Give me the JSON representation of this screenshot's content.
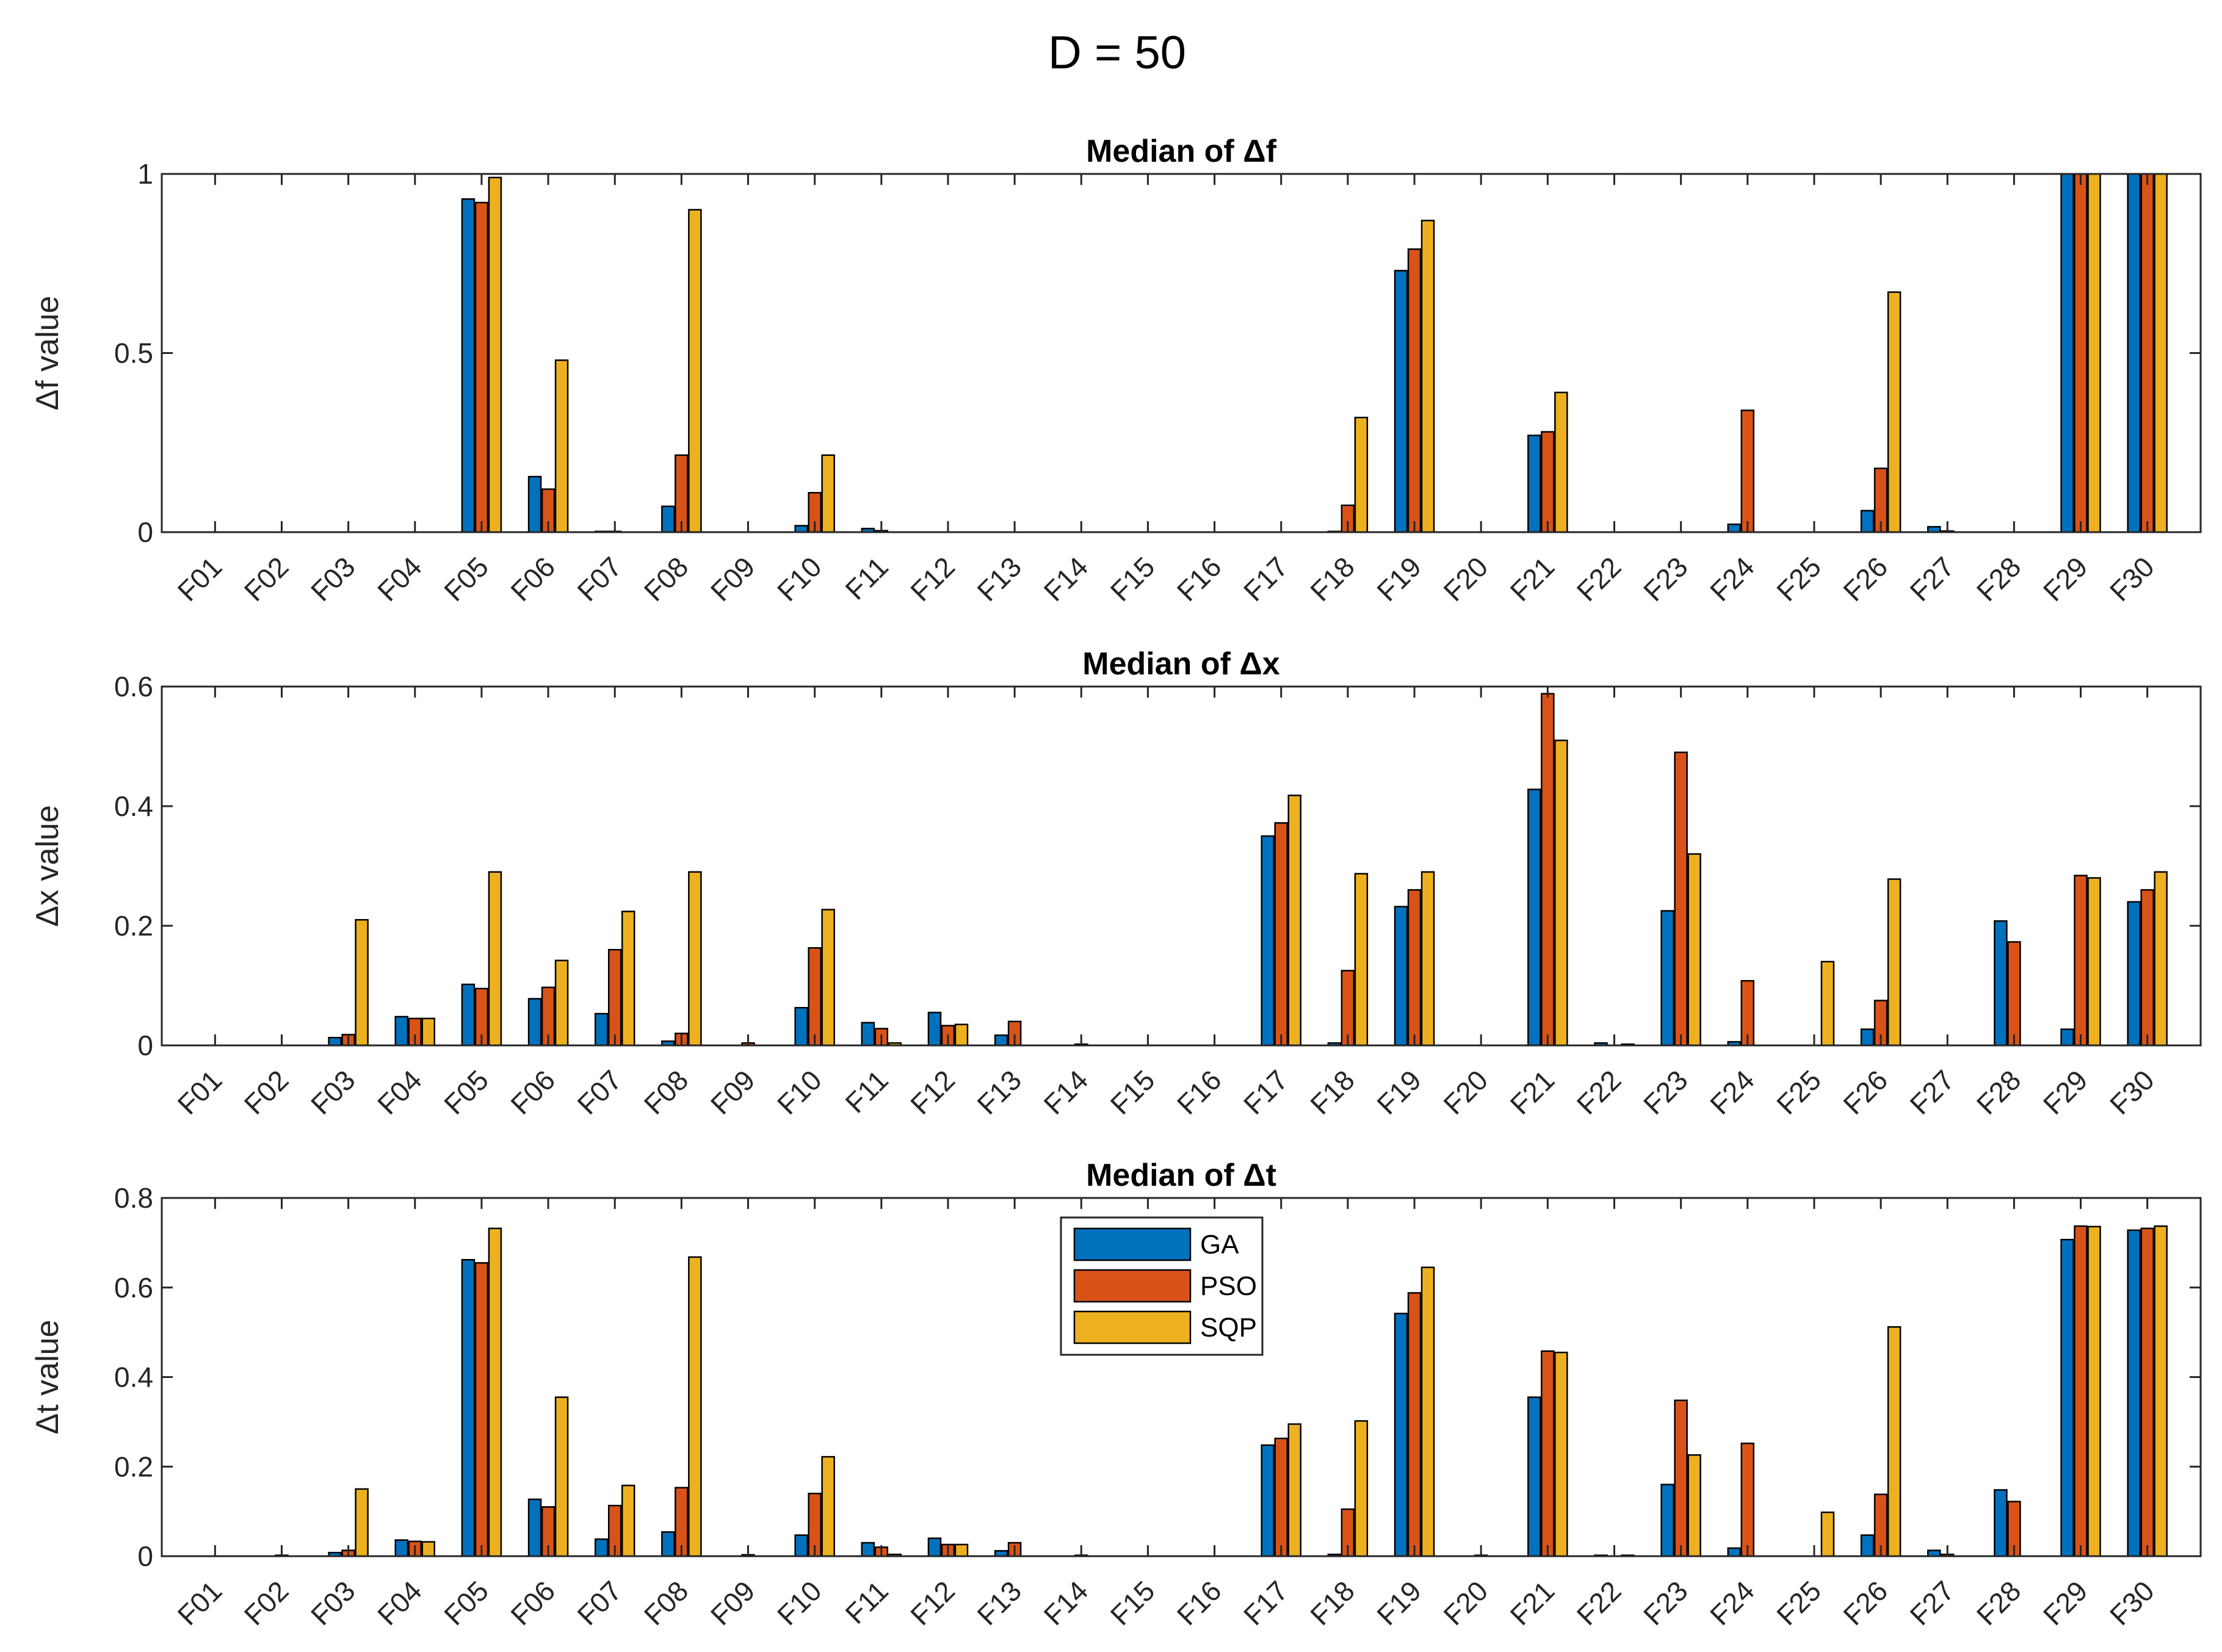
{
  "figure_title": "D = 50",
  "colors": {
    "GA": "#0072BD",
    "PSO": "#D95319",
    "SQP": "#EDB120"
  },
  "chart_data": [
    {
      "type": "bar",
      "title": "Median of Δf",
      "ylabel": "Δf value",
      "xlabel": "",
      "ylim": [
        0,
        1
      ],
      "yticks": [
        0,
        0.5,
        1
      ],
      "ytick_labels": [
        "0",
        "0.5",
        "1"
      ],
      "categories": [
        "F01",
        "F02",
        "F03",
        "F04",
        "F05",
        "F06",
        "F07",
        "F08",
        "F09",
        "F10",
        "F11",
        "F12",
        "F13",
        "F14",
        "F15",
        "F16",
        "F17",
        "F18",
        "F19",
        "F20",
        "F21",
        "F22",
        "F23",
        "F24",
        "F25",
        "F26",
        "F27",
        "F28",
        "F29",
        "F30"
      ],
      "series": [
        {
          "name": "GA",
          "values": [
            0,
            0,
            0,
            0,
            0.93,
            0.155,
            0.002,
            0.072,
            0,
            0.018,
            0.01,
            0,
            0,
            0,
            0,
            0,
            0,
            0.002,
            0.73,
            0,
            0.27,
            0,
            0,
            0.022,
            0,
            0.06,
            0.015,
            0,
            1,
            1
          ]
        },
        {
          "name": "PSO",
          "values": [
            0,
            0,
            0,
            0,
            0.92,
            0.12,
            0.002,
            0.215,
            0,
            0.11,
            0.004,
            0,
            0,
            0,
            0,
            0,
            0,
            0.075,
            0.79,
            0,
            0.28,
            0,
            0,
            0.34,
            0,
            0.178,
            0.003,
            0,
            1,
            1
          ]
        },
        {
          "name": "SQP",
          "values": [
            0,
            0,
            0,
            0,
            0.99,
            0.48,
            0,
            0.9,
            0,
            0.215,
            0,
            0,
            0,
            0,
            0,
            0,
            0,
            0.32,
            0.87,
            0,
            0.39,
            0,
            0,
            0,
            0,
            0.67,
            0,
            0,
            1,
            1
          ]
        }
      ],
      "legend": null
    },
    {
      "type": "bar",
      "title": "Median of Δx",
      "ylabel": "Δx value",
      "xlabel": "",
      "ylim": [
        0,
        0.6
      ],
      "yticks": [
        0,
        0.2,
        0.4,
        0.6
      ],
      "ytick_labels": [
        "0",
        "0.2",
        "0.4",
        "0.6"
      ],
      "categories": [
        "F01",
        "F02",
        "F03",
        "F04",
        "F05",
        "F06",
        "F07",
        "F08",
        "F09",
        "F10",
        "F11",
        "F12",
        "F13",
        "F14",
        "F15",
        "F16",
        "F17",
        "F18",
        "F19",
        "F20",
        "F21",
        "F22",
        "F23",
        "F24",
        "F25",
        "F26",
        "F27",
        "F28",
        "F29",
        "F30"
      ],
      "series": [
        {
          "name": "GA",
          "values": [
            0,
            0,
            0.013,
            0.048,
            0.102,
            0.078,
            0.053,
            0.007,
            0,
            0.063,
            0.038,
            0.055,
            0.017,
            0,
            0,
            0,
            0.35,
            0.004,
            0.232,
            0,
            0.428,
            0.004,
            0.225,
            0.006,
            0,
            0.027,
            0,
            0.208,
            0.027,
            0.24
          ]
        },
        {
          "name": "PSO",
          "values": [
            0,
            0,
            0.018,
            0.045,
            0.095,
            0.097,
            0.16,
            0.02,
            0.004,
            0.163,
            0.028,
            0.033,
            0.04,
            0.002,
            0,
            0,
            0.372,
            0.125,
            0.26,
            0,
            0.588,
            0,
            0.49,
            0.108,
            0,
            0.075,
            0,
            0.173,
            0.284,
            0.26
          ]
        },
        {
          "name": "SQP",
          "values": [
            0,
            0,
            0.21,
            0.045,
            0.29,
            0.142,
            0.224,
            0.29,
            0,
            0.227,
            0.004,
            0.035,
            0,
            0,
            0,
            0,
            0.418,
            0.287,
            0.29,
            0,
            0.51,
            0.002,
            0.32,
            0,
            0.14,
            0.278,
            0,
            0,
            0.28,
            0.29
          ]
        }
      ],
      "legend": null
    },
    {
      "type": "bar",
      "title": "Median of Δt",
      "ylabel": "Δt value",
      "xlabel": "",
      "ylim": [
        0,
        0.8
      ],
      "yticks": [
        0,
        0.2,
        0.4,
        0.6,
        0.8
      ],
      "ytick_labels": [
        "0",
        "0.2",
        "0.4",
        "0.6",
        "0.8"
      ],
      "categories": [
        "F01",
        "F02",
        "F03",
        "F04",
        "F05",
        "F06",
        "F07",
        "F08",
        "F09",
        "F10",
        "F11",
        "F12",
        "F13",
        "F14",
        "F15",
        "F16",
        "F17",
        "F18",
        "F19",
        "F20",
        "F21",
        "F22",
        "F23",
        "F24",
        "F25",
        "F26",
        "F27",
        "F28",
        "F29",
        "F30"
      ],
      "series": [
        {
          "name": "GA",
          "values": [
            0,
            0,
            0.008,
            0.036,
            0.662,
            0.127,
            0.038,
            0.054,
            0,
            0.047,
            0.03,
            0.04,
            0.012,
            0,
            0,
            0,
            0.248,
            0.004,
            0.542,
            0,
            0.355,
            0.002,
            0.16,
            0.018,
            0,
            0.047,
            0.013,
            0.148,
            0.707,
            0.728
          ]
        },
        {
          "name": "PSO",
          "values": [
            0,
            0.002,
            0.013,
            0.033,
            0.655,
            0.11,
            0.113,
            0.153,
            0.003,
            0.14,
            0.02,
            0.026,
            0.03,
            0.002,
            0,
            0,
            0.263,
            0.105,
            0.588,
            0.002,
            0.458,
            0,
            0.348,
            0.252,
            0,
            0.138,
            0.004,
            0.122,
            0.737,
            0.732
          ]
        },
        {
          "name": "SQP",
          "values": [
            0,
            0,
            0.15,
            0.032,
            0.732,
            0.355,
            0.158,
            0.668,
            0,
            0.222,
            0.004,
            0.026,
            0,
            0,
            0,
            0,
            0.295,
            0.302,
            0.645,
            0,
            0.455,
            0.002,
            0.226,
            0,
            0.098,
            0.512,
            0,
            0,
            0.736,
            0.737
          ]
        }
      ],
      "legend": {
        "position": "top-center",
        "entries": [
          "GA",
          "PSO",
          "SQP"
        ]
      }
    }
  ]
}
